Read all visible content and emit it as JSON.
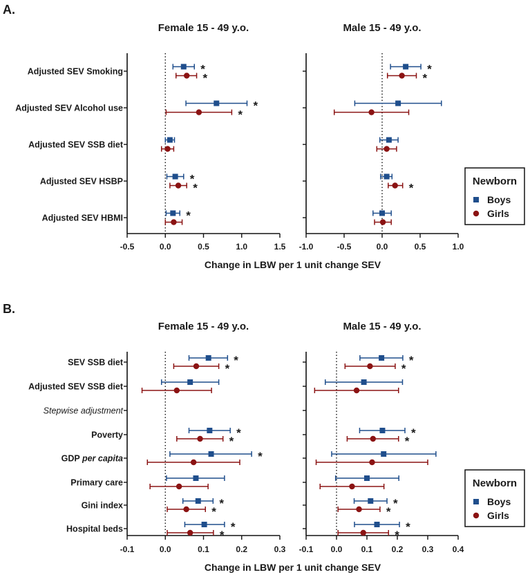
{
  "colors": {
    "boys": "#1f4e8c",
    "girls": "#8b1313",
    "text": "#1a1a1a"
  },
  "chart_data": [
    {
      "panel_label": "A.",
      "type": "forest",
      "xlabel": "Change in LBW per 1 unit change SEV",
      "legend": {
        "title": "Newborn",
        "entries": [
          "Boys",
          "Girls"
        ]
      },
      "rows": [
        {
          "label": "Adjusted SEV Smoking",
          "italic": false
        },
        {
          "label": "Adjusted SEV Alcohol use",
          "italic": false
        },
        {
          "label": "Adjusted SEV SSB diet",
          "italic": false
        },
        {
          "label": "Adjusted SEV HSBP",
          "italic": false
        },
        {
          "label": "Adjusted SEV HBMI",
          "italic": false
        }
      ],
      "subplots": [
        {
          "title": "Female 15 - 49 y.o.",
          "xlim": [
            -0.5,
            1.5
          ],
          "ticks": [
            "-0.5",
            "0.0",
            "0.5",
            "1.0",
            "1.5"
          ],
          "tick_values": [
            -0.5,
            0.0,
            0.5,
            1.0,
            1.5
          ],
          "series": [
            {
              "name": "Boys",
              "estimate": [
                0.24,
                0.67,
                0.06,
                0.13,
                0.1
              ],
              "lower": [
                0.1,
                0.27,
                0.0,
                0.02,
                0.01
              ],
              "upper": [
                0.38,
                1.07,
                0.12,
                0.24,
                0.19
              ],
              "significant": [
                "*",
                "*",
                "",
                "*",
                "*"
              ]
            },
            {
              "name": "Girls",
              "estimate": [
                0.28,
                0.44,
                0.03,
                0.17,
                0.11
              ],
              "lower": [
                0.14,
                0.01,
                -0.05,
                0.06,
                0.0
              ],
              "upper": [
                0.41,
                0.87,
                0.11,
                0.28,
                0.22
              ],
              "significant": [
                "*",
                "*",
                "",
                "*",
                ""
              ]
            }
          ]
        },
        {
          "title": "Male 15 - 49 y.o.",
          "xlim": [
            -1.0,
            1.0
          ],
          "ticks": [
            "-1.0",
            "-0.5",
            "0.0",
            "0.5",
            "1.0"
          ],
          "tick_values": [
            -1.0,
            -0.5,
            0.0,
            0.5,
            1.0
          ],
          "series": [
            {
              "name": "Boys",
              "estimate": [
                0.31,
                0.21,
                0.09,
                0.06,
                0.0
              ],
              "lower": [
                0.11,
                -0.36,
                -0.03,
                -0.02,
                -0.12
              ],
              "upper": [
                0.51,
                0.78,
                0.21,
                0.13,
                0.12
              ],
              "significant": [
                "*",
                "",
                "",
                "",
                ""
              ]
            },
            {
              "name": "Girls",
              "estimate": [
                0.26,
                -0.14,
                0.06,
                0.17,
                0.01
              ],
              "lower": [
                0.07,
                -0.63,
                -0.07,
                0.08,
                -0.1
              ],
              "upper": [
                0.45,
                0.35,
                0.19,
                0.27,
                0.12
              ],
              "significant": [
                "*",
                "",
                "",
                "*",
                ""
              ]
            }
          ]
        }
      ]
    },
    {
      "panel_label": "B.",
      "type": "forest",
      "xlabel": "Change in LBW per 1 unit change SEV",
      "legend": {
        "title": "Newborn",
        "entries": [
          "Boys",
          "Girls"
        ]
      },
      "rows": [
        {
          "label": "SEV SSB diet",
          "italic": false
        },
        {
          "label": "Adjusted SEV SSB diet",
          "italic": false
        },
        {
          "label": "Stepwise adjustment",
          "italic": true
        },
        {
          "label": "Poverty",
          "italic": false
        },
        {
          "label": "GDP ",
          "label_italic": "per capita",
          "italic": false
        },
        {
          "label": "Primary care",
          "italic": false
        },
        {
          "label": "Gini index",
          "italic": false
        },
        {
          "label": "Hospital beds",
          "italic": false
        }
      ],
      "subplots": [
        {
          "title": "Female 15 - 49 y.o.",
          "xlim": [
            -0.1,
            0.3
          ],
          "ticks": [
            "-0.1",
            "0.0",
            "0.1",
            "0.2",
            "0.3"
          ],
          "tick_values": [
            -0.1,
            0.0,
            0.1,
            0.2,
            0.3
          ],
          "series": [
            {
              "name": "Boys",
              "estimate": [
                0.113,
                0.065,
                null,
                0.116,
                0.12,
                0.08,
                0.086,
                0.102
              ],
              "lower": [
                0.062,
                -0.01,
                null,
                0.062,
                0.012,
                0.003,
                0.046,
                0.051
              ],
              "upper": [
                0.163,
                0.14,
                null,
                0.17,
                0.226,
                0.155,
                0.125,
                0.155
              ],
              "significant": [
                "*",
                "",
                "",
                "*",
                "*",
                "",
                "*",
                "*"
              ]
            },
            {
              "name": "Girls",
              "estimate": [
                0.081,
                0.03,
                null,
                0.091,
                0.074,
                0.036,
                0.055,
                0.065
              ],
              "lower": [
                0.022,
                -0.061,
                null,
                0.03,
                -0.047,
                -0.04,
                0.005,
                0.005
              ],
              "upper": [
                0.14,
                0.121,
                null,
                0.151,
                0.195,
                0.112,
                0.105,
                0.126
              ],
              "significant": [
                "*",
                "",
                "",
                "*",
                "",
                "",
                "*",
                "*"
              ]
            }
          ]
        },
        {
          "title": "Male 15 - 49 y.o.",
          "xlim": [
            -0.1,
            0.4
          ],
          "ticks": [
            "-0.1",
            "0.0",
            "0.1",
            "0.2",
            "0.3",
            "0.4"
          ],
          "tick_values": [
            -0.1,
            0.0,
            0.1,
            0.2,
            0.3,
            0.4
          ],
          "series": [
            {
              "name": "Boys",
              "estimate": [
                0.148,
                0.09,
                null,
                0.151,
                0.155,
                0.1,
                0.112,
                0.133
              ],
              "lower": [
                0.077,
                -0.037,
                null,
                0.076,
                -0.016,
                -0.003,
                0.058,
                0.059
              ],
              "upper": [
                0.218,
                0.217,
                null,
                0.225,
                0.327,
                0.205,
                0.166,
                0.207
              ],
              "significant": [
                "*",
                "",
                "",
                "*",
                "",
                "",
                "*",
                "*"
              ]
            },
            {
              "name": "Girls",
              "estimate": [
                0.11,
                0.066,
                null,
                0.12,
                0.117,
                0.051,
                0.074,
                0.088
              ],
              "lower": [
                0.028,
                -0.072,
                null,
                0.035,
                -0.067,
                -0.054,
                0.005,
                0.005
              ],
              "upper": [
                0.193,
                0.204,
                null,
                0.204,
                0.3,
                0.156,
                0.143,
                0.171
              ],
              "significant": [
                "*",
                "",
                "",
                "*",
                "",
                "",
                "*",
                "*"
              ]
            }
          ]
        }
      ]
    }
  ]
}
